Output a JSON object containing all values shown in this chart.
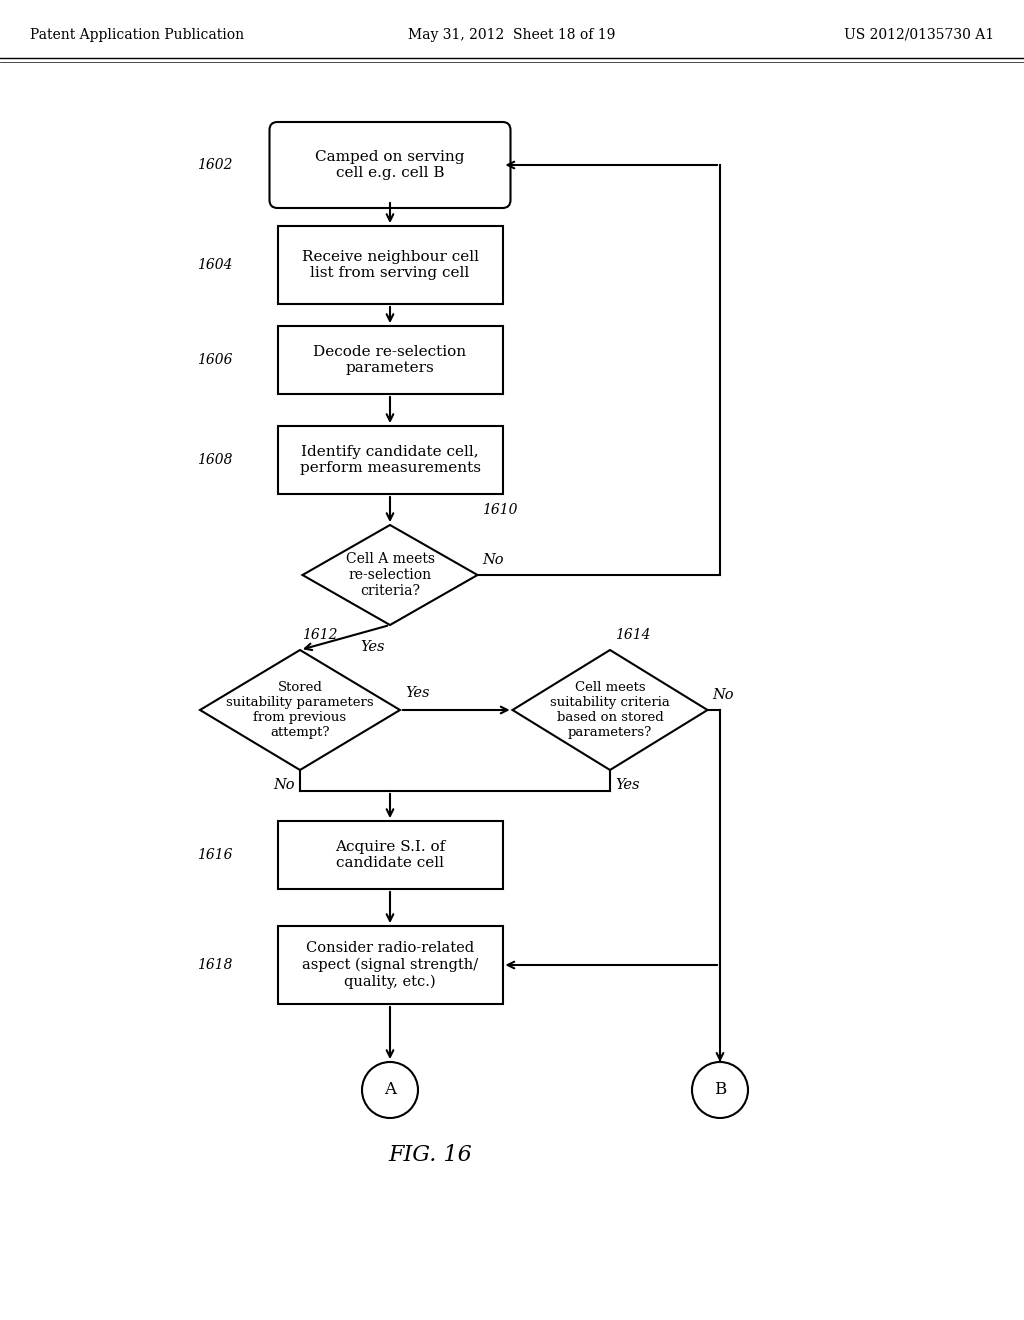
{
  "title_left": "Patent Application Publication",
  "title_mid": "May 31, 2012  Sheet 18 of 19",
  "title_right": "US 2012/0135730 A1",
  "fig_label": "FIG. 16",
  "bg_color": "#ffffff"
}
